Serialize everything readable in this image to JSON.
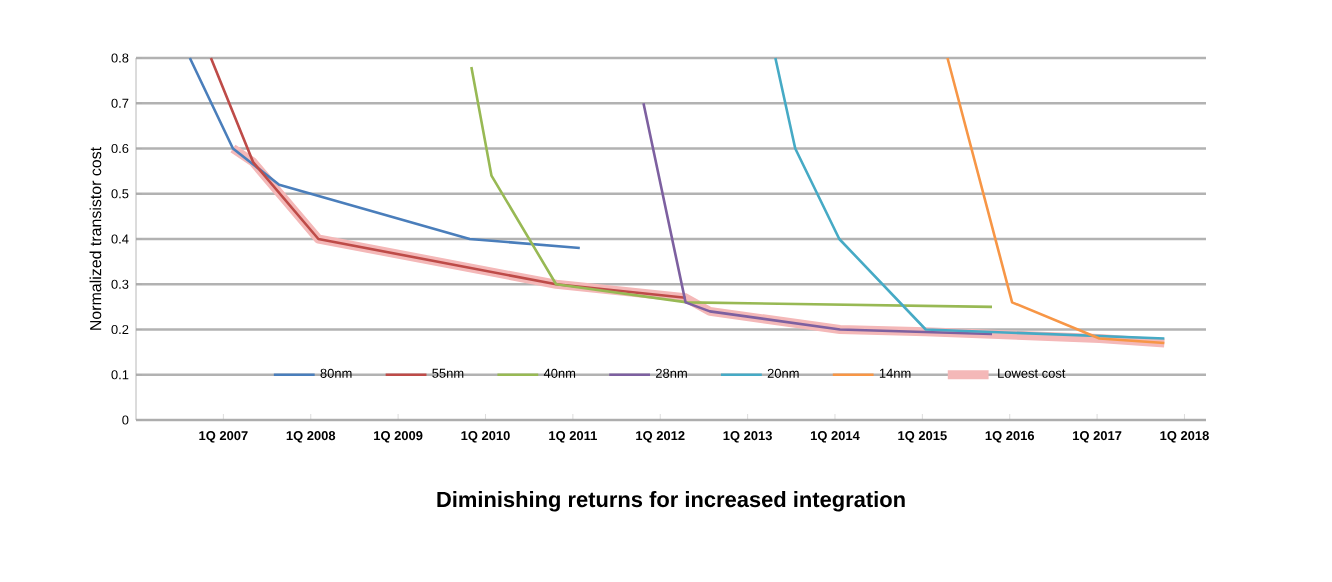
{
  "chart_data": {
    "type": "line",
    "title": "Diminishing returns for increased integration",
    "ylabel": "Normalized transistor cost",
    "xlim": [
      "2006-01-01",
      "2018-04-01"
    ],
    "ylim": [
      0,
      0.8
    ],
    "xticks": [
      {
        "value": "2007-01-01",
        "label": "1Q 2007"
      },
      {
        "value": "2008-01-01",
        "label": "1Q 2008"
      },
      {
        "value": "2009-01-01",
        "label": "1Q 2009"
      },
      {
        "value": "2010-01-01",
        "label": "1Q 2010"
      },
      {
        "value": "2011-01-01",
        "label": "1Q 2011"
      },
      {
        "value": "2012-01-01",
        "label": "1Q 2012"
      },
      {
        "value": "2013-01-01",
        "label": "1Q 2013"
      },
      {
        "value": "2014-01-01",
        "label": "1Q 2014"
      },
      {
        "value": "2015-01-01",
        "label": "1Q 2015"
      },
      {
        "value": "2016-01-01",
        "label": "1Q 2016"
      },
      {
        "value": "2017-01-01",
        "label": "1Q 2017"
      },
      {
        "value": "2018-01-01",
        "label": "1Q 2018"
      }
    ],
    "yticks": [
      0,
      0.1,
      0.2,
      0.3,
      0.4,
      0.5,
      0.6,
      0.7,
      0.8
    ],
    "grid": "y",
    "legend": "bottom",
    "marker": "none",
    "line_style": "solid",
    "series": [
      {
        "name": "80nm",
        "color": "#4a7ebb",
        "x": [
          "2006-08-14",
          "2007-02-10",
          "2007-08-22",
          "2009-10-27",
          "2011-01-30"
        ],
        "values": [
          0.8,
          0.6,
          0.52,
          0.4,
          0.38
        ]
      },
      {
        "name": "55nm",
        "color": "#be4b48",
        "x": [
          "2006-11-10",
          "2007-05-05",
          "2008-02-02",
          "2010-10-23",
          "2012-04-16"
        ],
        "values": [
          0.8,
          0.57,
          0.4,
          0.3,
          0.27
        ]
      },
      {
        "name": "40nm",
        "color": "#98b954",
        "x": [
          "2009-11-03",
          "2010-01-26",
          "2010-10-23",
          "2012-04-23",
          "2015-10-19"
        ],
        "values": [
          0.78,
          0.54,
          0.3,
          0.26,
          0.25
        ]
      },
      {
        "name": "28nm",
        "color": "#7d60a0",
        "x": [
          "2011-10-23",
          "2012-04-16",
          "2012-07-27",
          "2014-01-22",
          "2015-10-19"
        ],
        "values": [
          0.7,
          0.26,
          0.24,
          0.2,
          0.19
        ]
      },
      {
        "name": "20nm",
        "color": "#46aac5",
        "x": [
          "2013-04-27",
          "2013-07-19",
          "2014-01-19",
          "2015-01-15",
          "2017-10-09"
        ],
        "values": [
          0.8,
          0.6,
          0.4,
          0.2,
          0.18
        ]
      },
      {
        "name": "14nm",
        "color": "#f79646",
        "x": [
          "2015-04-16",
          "2016-01-11",
          "2017-01-11",
          "2017-10-09"
        ],
        "values": [
          0.8,
          0.26,
          0.18,
          0.17
        ]
      },
      {
        "name": "Lowest cost",
        "color": "#f4b8b8",
        "x": [
          "2007-02-10",
          "2007-05-05",
          "2008-02-02",
          "2010-10-23",
          "2012-04-16",
          "2012-07-27",
          "2014-01-22",
          "2015-01-15",
          "2017-01-11",
          "2017-10-09"
        ],
        "values": [
          0.6,
          0.57,
          0.4,
          0.3,
          0.27,
          0.24,
          0.2,
          0.195,
          0.18,
          0.17
        ]
      }
    ]
  }
}
